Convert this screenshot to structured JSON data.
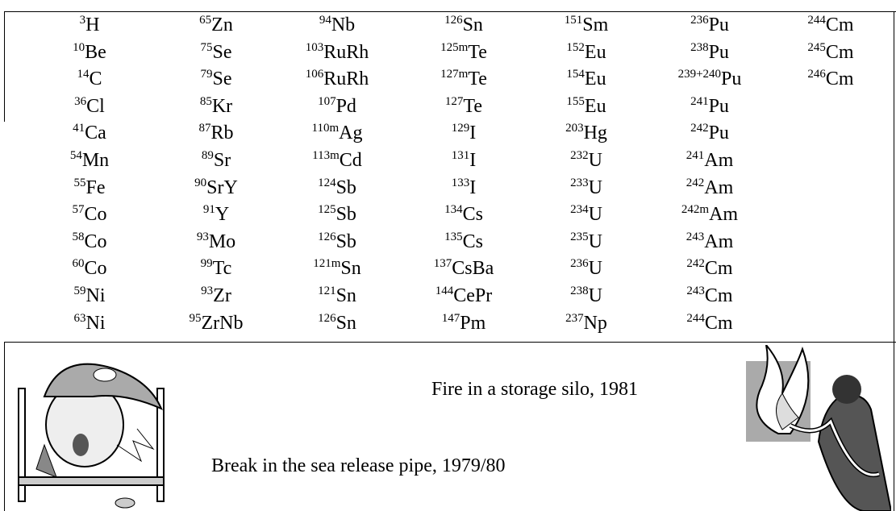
{
  "table": {
    "columns": [
      [
        {
          "mass": "3",
          "symbol": "H"
        },
        {
          "mass": "10",
          "symbol": "Be"
        },
        {
          "mass": "14",
          "symbol": "C"
        },
        {
          "mass": "36",
          "symbol": "Cl"
        },
        {
          "mass": "41",
          "symbol": "Ca"
        },
        {
          "mass": "54",
          "symbol": "Mn"
        },
        {
          "mass": "55",
          "symbol": "Fe"
        },
        {
          "mass": "57",
          "symbol": "Co"
        },
        {
          "mass": "58",
          "symbol": "Co"
        },
        {
          "mass": "60",
          "symbol": "Co"
        },
        {
          "mass": "59",
          "symbol": "Ni"
        },
        {
          "mass": "63",
          "symbol": "Ni"
        }
      ],
      [
        {
          "mass": "65",
          "symbol": "Zn"
        },
        {
          "mass": "75",
          "symbol": "Se"
        },
        {
          "mass": "79",
          "symbol": "Se"
        },
        {
          "mass": "85",
          "symbol": "Kr"
        },
        {
          "mass": "87",
          "symbol": "Rb"
        },
        {
          "mass": "89",
          "symbol": "Sr"
        },
        {
          "mass": "90",
          "symbol": "SrY"
        },
        {
          "mass": "91",
          "symbol": "Y"
        },
        {
          "mass": "93",
          "symbol": "Mo"
        },
        {
          "mass": "99",
          "symbol": "Tc"
        },
        {
          "mass": "93",
          "symbol": "Zr"
        },
        {
          "mass": "95",
          "symbol": "ZrNb"
        }
      ],
      [
        {
          "mass": "94",
          "symbol": "Nb"
        },
        {
          "mass": "103",
          "symbol": "RuRh"
        },
        {
          "mass": "106",
          "symbol": "RuRh"
        },
        {
          "mass": "107",
          "symbol": "Pd"
        },
        {
          "mass": "110m",
          "symbol": "Ag"
        },
        {
          "mass": "113m",
          "symbol": "Cd"
        },
        {
          "mass": "124",
          "symbol": "Sb"
        },
        {
          "mass": "125",
          "symbol": "Sb"
        },
        {
          "mass": "126",
          "symbol": "Sb"
        },
        {
          "mass": "121m",
          "symbol": "Sn"
        },
        {
          "mass": "121",
          "symbol": "Sn"
        },
        {
          "mass": "126",
          "symbol": "Sn"
        }
      ],
      [
        {
          "mass": "126",
          "symbol": "Sn"
        },
        {
          "mass": "125m",
          "symbol": "Te"
        },
        {
          "mass": "127m",
          "symbol": "Te"
        },
        {
          "mass": "127",
          "symbol": "Te"
        },
        {
          "mass": "129",
          "symbol": "I"
        },
        {
          "mass": "131",
          "symbol": "I"
        },
        {
          "mass": "133",
          "symbol": "I"
        },
        {
          "mass": "134",
          "symbol": "Cs"
        },
        {
          "mass": "135",
          "symbol": "Cs"
        },
        {
          "mass": "137",
          "symbol": "CsBa"
        },
        {
          "mass": "144",
          "symbol": "CePr"
        },
        {
          "mass": "147",
          "symbol": "Pm"
        }
      ],
      [
        {
          "mass": "151",
          "symbol": "Sm"
        },
        {
          "mass": "152",
          "symbol": "Eu"
        },
        {
          "mass": "154",
          "symbol": "Eu"
        },
        {
          "mass": "155",
          "symbol": "Eu"
        },
        {
          "mass": "203",
          "symbol": "Hg"
        },
        {
          "mass": "232",
          "symbol": "U"
        },
        {
          "mass": "233",
          "symbol": "U"
        },
        {
          "mass": "234",
          "symbol": "U"
        },
        {
          "mass": "235",
          "symbol": "U"
        },
        {
          "mass": "236",
          "symbol": "U"
        },
        {
          "mass": "238",
          "symbol": "U"
        },
        {
          "mass": "237",
          "symbol": "Np"
        }
      ],
      [
        {
          "mass": "236",
          "symbol": "Pu"
        },
        {
          "mass": "238",
          "symbol": "Pu"
        },
        {
          "mass": "239+240",
          "symbol": "Pu"
        },
        {
          "mass": "241",
          "symbol": "Pu"
        },
        {
          "mass": "242",
          "symbol": "Pu"
        },
        {
          "mass": "241",
          "symbol": "Am"
        },
        {
          "mass": "242",
          "symbol": "Am"
        },
        {
          "mass": "242m",
          "symbol": "Am"
        },
        {
          "mass": "243",
          "symbol": "Am"
        },
        {
          "mass": "242",
          "symbol": "Cm"
        },
        {
          "mass": "243",
          "symbol": "Cm"
        },
        {
          "mass": "244",
          "symbol": "Cm"
        }
      ],
      [
        {
          "mass": "244",
          "symbol": "Cm"
        },
        {
          "mass": "245",
          "symbol": "Cm"
        },
        {
          "mass": "246",
          "symbol": "Cm"
        }
      ]
    ]
  },
  "captions": {
    "fire": "Fire in a storage silo, 1981",
    "pipe": "Break in the sea release pipe, 1979/80"
  }
}
